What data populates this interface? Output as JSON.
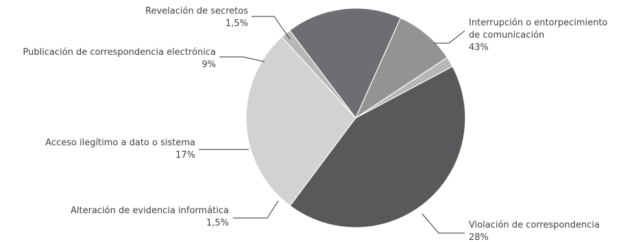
{
  "chart_data": {
    "type": "pie",
    "title": "",
    "slices": [
      {
        "label_lines": [
          "Interrupción o entorpecimiento",
          "de comunicación"
        ],
        "value_label": "43%",
        "value": 43,
        "color": "#58595b"
      },
      {
        "label_lines": [
          "Violación de correspondencia"
        ],
        "value_label": "28%",
        "value": 28,
        "color": "#d1d2d4"
      },
      {
        "label_lines": [
          "Alteración de evidencia informática"
        ],
        "value_label": "1,5%",
        "value": 1.5,
        "color": "#b6b7b9"
      },
      {
        "label_lines": [
          "Acceso ilegítimo a dato o sistema"
        ],
        "value_label": "17%",
        "value": 17,
        "color": "#6d6e71"
      },
      {
        "label_lines": [
          "Publicación de correspondencia electrónica"
        ],
        "value_label": "9%",
        "value": 9,
        "color": "#929395"
      },
      {
        "label_lines": [
          "Revelación de secretos"
        ],
        "value_label": "1,5%",
        "value": 1.5,
        "color": "#b6b7b9"
      }
    ]
  }
}
